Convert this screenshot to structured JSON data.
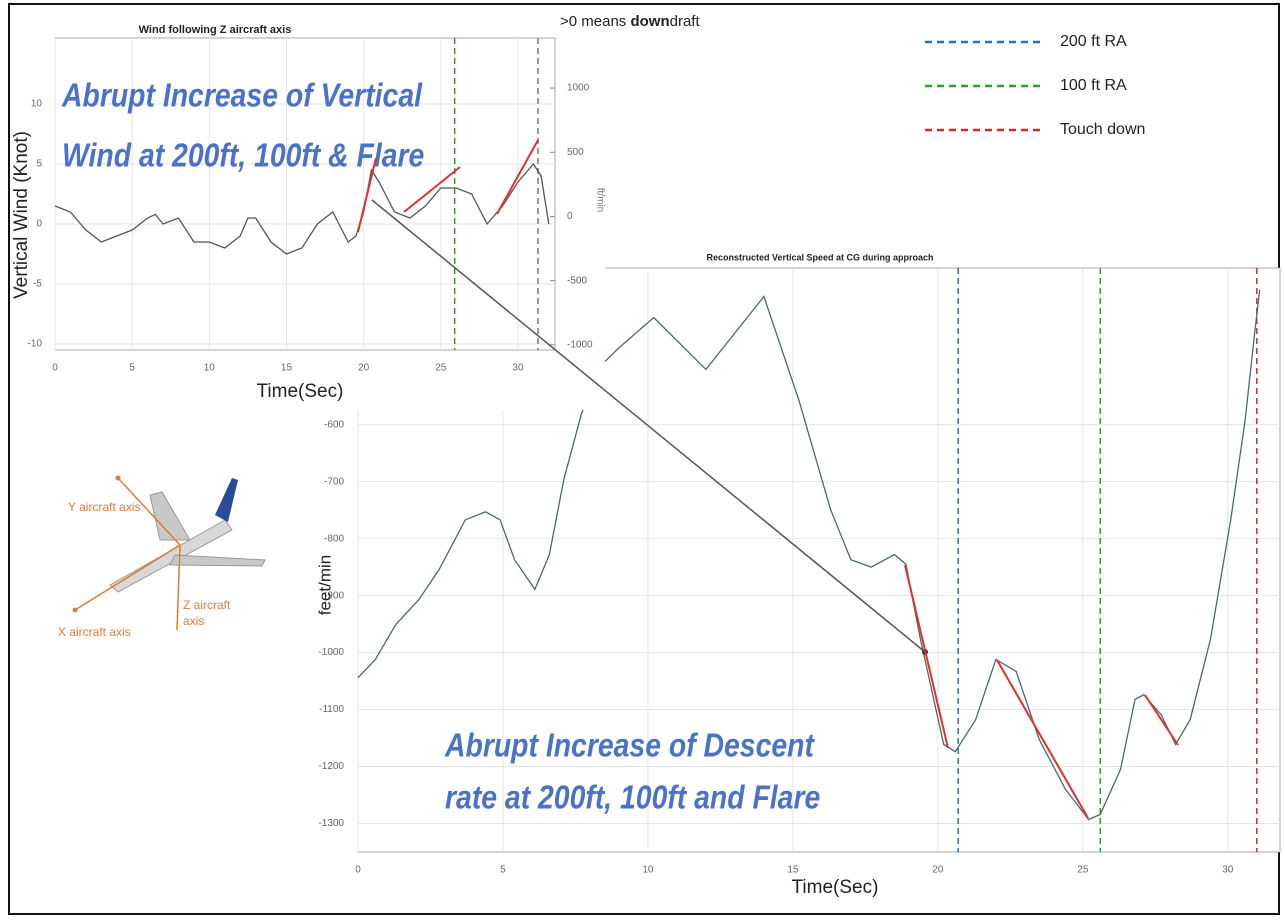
{
  "chart_data": [
    {
      "type": "line",
      "title": "Wind following Z aircraft axis",
      "y_label": "Vertical Wind (Knot)",
      "x_label": "Time(Sec)",
      "y2_label": "ft/min",
      "y2_note": [
        ">0 means ",
        "down",
        "draft"
      ],
      "annotation": [
        "Abrupt Increase of Vertical",
        "Wind at 200ft, 100ft & Flare"
      ],
      "xlim": [
        0,
        32.4
      ],
      "xticks": [
        0,
        5,
        10,
        15,
        20,
        25,
        30
      ],
      "ylim": [
        -10.5,
        15.5
      ],
      "yticks": [
        -10,
        -5,
        0,
        5,
        10
      ],
      "y2lim": [
        -1040,
        1390
      ],
      "y2ticks": [
        -1000,
        -500,
        0,
        500,
        1000
      ],
      "grid": true,
      "color": "#555555",
      "x": [
        0,
        1,
        2,
        3,
        4,
        5,
        6,
        6.5,
        7,
        8,
        9,
        10,
        11,
        12,
        12.5,
        13,
        14,
        15,
        16,
        17,
        18,
        19,
        19.5,
        20,
        20.5,
        21,
        22,
        23,
        24,
        25,
        26,
        27,
        28,
        29,
        30,
        31,
        31.5,
        32
      ],
      "values": [
        1.5,
        1,
        -0.5,
        -1.5,
        -1,
        -0.5,
        0.5,
        0.8,
        0,
        0.5,
        -1.5,
        -1.5,
        -2,
        -1,
        0.5,
        0.5,
        -1.5,
        -2.5,
        -2,
        0,
        1,
        -1.5,
        -1,
        1,
        4.5,
        3.5,
        1,
        0.5,
        1.5,
        3,
        3,
        2.5,
        0,
        1.5,
        3.5,
        5,
        4,
        0
      ],
      "markers": [
        {
          "x": 25.9,
          "color": "#2ca02c"
        },
        {
          "x": 31.3,
          "color": "#777777"
        }
      ]
    },
    {
      "type": "line",
      "title": "Reconstructed Vertical Speed at CG during approach",
      "y_label": "feet/min",
      "x_label": "Time(Sec)",
      "annotation": [
        "Abrupt Increase of Descent",
        "rate at 200ft, 100ft and Flare"
      ],
      "xlim": [
        0,
        31.8
      ],
      "xticks": [
        0,
        5,
        10,
        15,
        20,
        25,
        30
      ],
      "ylim": [
        -1350,
        -325
      ],
      "yticks": [
        -1300,
        -1200,
        -1100,
        -1000,
        -900,
        -800,
        -700,
        -600
      ],
      "grid": true,
      "color": "#4a6a6a",
      "x": [
        0,
        0.6,
        1.3,
        2.1,
        2.8,
        3.7,
        4.4,
        4.9,
        5.4,
        6.1,
        6.6,
        7.1,
        7.7,
        8.3,
        9,
        10.2,
        12,
        14,
        15.2,
        16.3,
        17,
        17.7,
        18.5,
        18.9,
        19.4,
        20.2,
        20.6,
        21.3,
        22,
        22.7,
        23.5,
        24.4,
        25.2,
        25.6,
        26.3,
        26.8,
        27.1,
        27.7,
        28.2,
        28.7,
        29.4,
        30.1,
        30.6,
        30.9,
        31.1
      ],
      "values": [
        -1044,
        -1012,
        -951,
        -907,
        -854,
        -767,
        -753,
        -767,
        -837,
        -889,
        -828,
        -696,
        -582,
        -500,
        -465,
        -412,
        -503,
        -375,
        -556,
        -749,
        -837,
        -850,
        -828,
        -845,
        -977,
        -1161,
        -1174,
        -1118,
        -1012,
        -1033,
        -1153,
        -1240,
        -1293,
        -1284,
        -1205,
        -1082,
        -1074,
        -1109,
        -1161,
        -1118,
        -977,
        -767,
        -591,
        -451,
        -363
      ],
      "markers": [
        {
          "name": "200 ft RA",
          "x": 20.7,
          "color": "#1f77b4"
        },
        {
          "name": "100 ft RA",
          "x": 25.6,
          "color": "#2ca02c"
        },
        {
          "name": "Touch down",
          "x": 31,
          "color": "#d62728"
        }
      ]
    }
  ],
  "diagram": {
    "axis_labels": [
      [
        "Y aircraft axis"
      ],
      [
        "X aircraft axis"
      ],
      [
        "Z aircraft",
        "axis"
      ]
    ]
  }
}
